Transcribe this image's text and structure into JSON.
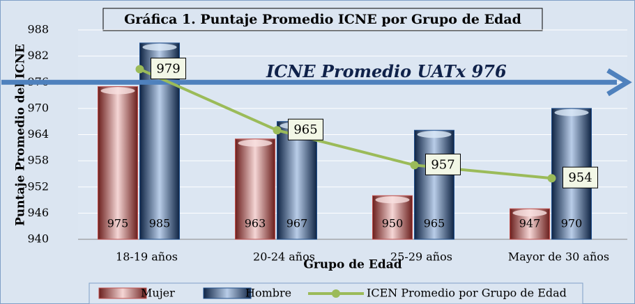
{
  "chart_data": {
    "type": "bar",
    "title": "Gráfica 1. Puntaje Promedio ICNE  por Grupo de Edad",
    "x_label": "Grupo de Edad",
    "y_label": "Puntaje Promedio del ICNE",
    "categories": [
      "18-19 años",
      "20-24 años",
      "25-29 años",
      "Mayor de 30 años"
    ],
    "series": [
      {
        "name": "Mujer",
        "color": "#c0504d",
        "values": [
          975,
          963,
          950,
          947
        ]
      },
      {
        "name": "Hombre",
        "color": "#1f4e8c",
        "values": [
          985,
          967,
          965,
          970
        ]
      },
      {
        "name": "ICEN Promedio  por Grupo de Edad",
        "color": "#9bbb59",
        "type": "line",
        "values": [
          979,
          965,
          957,
          954
        ]
      }
    ],
    "reference_line": {
      "value": 976,
      "label": "ICNE Promedio UATx  976",
      "color": "#4f81bd"
    },
    "ylim": [
      940,
      988
    ],
    "yticks": [
      940,
      946,
      952,
      958,
      964,
      970,
      976,
      982,
      988
    ],
    "grid": true,
    "legend": "bottom"
  }
}
